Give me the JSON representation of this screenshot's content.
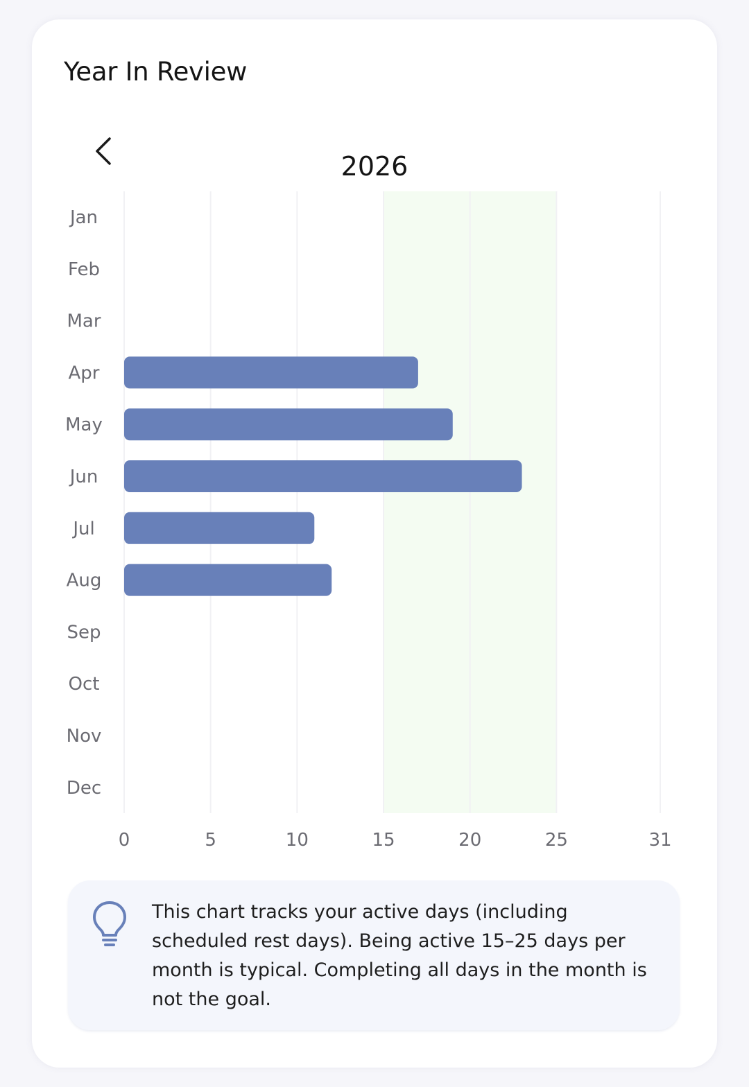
{
  "header": {
    "title": "Year In Review",
    "year": "2026"
  },
  "icons": {
    "prev": "chevron-left-icon",
    "tip": "lightbulb-icon"
  },
  "colors": {
    "bar": "#6880b9",
    "band": "#f4fcf2",
    "grid": "#f1f1f4",
    "label": "#6b6b72",
    "tip_icon": "#6880b9"
  },
  "chart_data": {
    "type": "bar",
    "orientation": "horizontal",
    "categories": [
      "Jan",
      "Feb",
      "Mar",
      "Apr",
      "May",
      "Jun",
      "Jul",
      "Aug",
      "Sep",
      "Oct",
      "Nov",
      "Dec"
    ],
    "values": [
      0,
      0,
      0,
      17,
      19,
      23,
      11,
      12,
      0,
      0,
      0,
      0
    ],
    "xlim": [
      0,
      31
    ],
    "xticks": [
      0,
      5,
      10,
      15,
      20,
      25,
      31
    ],
    "highlight_range": [
      15,
      25
    ],
    "grid": true,
    "title": "",
    "xlabel": "",
    "ylabel": ""
  },
  "tip": {
    "text": "This chart tracks your active days (including scheduled rest days). Being active 15–25 days per month is typical. Completing all days in the month is not the goal."
  }
}
